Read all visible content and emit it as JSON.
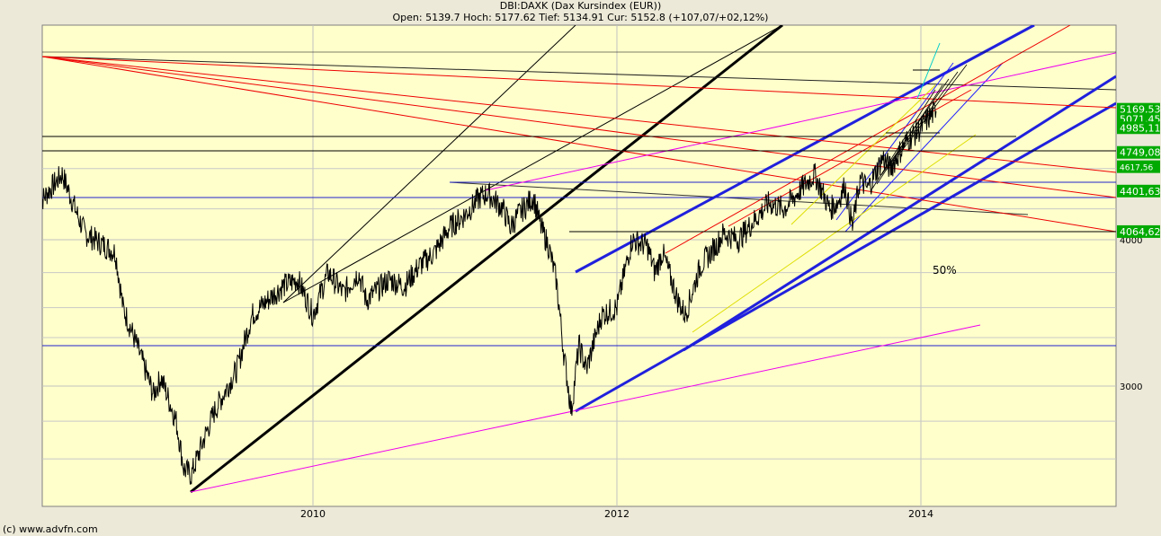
{
  "header": {
    "title": "DBI:DAXK (Dax Kursindex (EUR))",
    "quote": "Open: 5139.7 Hoch: 5177.62 Tief: 5134.91 Cur: 5152.8 (+107,07/+02,12%)"
  },
  "footer": {
    "copyright": "(c) www.advfn.com"
  },
  "chart_data": {
    "type": "line",
    "title": "DBI:DAXK (Dax Kursindex (EUR))",
    "x_ticks": [
      "2010",
      "2012",
      "2014"
    ],
    "y_ticks": [
      3000,
      4000
    ],
    "y_scale": "log",
    "xlim": [
      2008.2,
      2015.3
    ],
    "ylim": [
      2470,
      5750
    ],
    "grid": true,
    "price_labels": [
      {
        "value": "5169,53",
        "color": "#00aa00"
      },
      {
        "value": "5071,45",
        "color": "#00aa00"
      },
      {
        "value": "4985,11",
        "color": "#00aa00"
      },
      {
        "value": "4749,08",
        "color": "#00aa00"
      },
      {
        "value": "4617,56",
        "color": "#00aa00"
      },
      {
        "value": "4401,63",
        "color": "#00aa00"
      },
      {
        "value": "4064,62",
        "color": "#00aa00"
      }
    ],
    "annotations": [
      "50%"
    ],
    "series": [
      {
        "x": [
          2008.2,
          2008.35,
          2008.45,
          2008.5,
          2008.7,
          2008.75,
          2008.95,
          2009.0,
          2009.1,
          2009.15,
          2009.2,
          2009.35,
          2009.5,
          2009.6,
          2009.7,
          2009.8,
          2009.9,
          2010.0,
          2010.1,
          2010.2,
          2010.3,
          2010.35,
          2010.5,
          2010.6,
          2010.7,
          2010.8,
          2010.9,
          2011.0,
          2011.1,
          2011.15,
          2011.25,
          2011.3,
          2011.35,
          2011.45,
          2011.5,
          2011.55,
          2011.6,
          2011.65,
          2011.7,
          2011.75,
          2011.8,
          2011.9,
          2012.0,
          2012.1,
          2012.2,
          2012.25,
          2012.3,
          2012.4,
          2012.45,
          2012.55,
          2012.65,
          2012.7,
          2012.8,
          2012.9,
          2013.0,
          2013.1,
          2013.2,
          2013.3,
          2013.4,
          2013.45,
          2013.5,
          2013.55,
          2013.6,
          2013.65,
          2013.75,
          2013.8,
          2013.9,
          2014.0,
          2014.05,
          2014.1
        ],
        "values": [
          4300,
          4550,
          4200,
          4050,
          3900,
          3500,
          2950,
          3050,
          2800,
          2550,
          2520,
          2850,
          3100,
          3450,
          3550,
          3650,
          3700,
          3450,
          3750,
          3600,
          3750,
          3550,
          3700,
          3650,
          3800,
          3900,
          4100,
          4200,
          4350,
          4380,
          4250,
          4100,
          4200,
          4350,
          4100,
          3950,
          3700,
          3200,
          2850,
          3250,
          3100,
          3450,
          3500,
          4000,
          3950,
          3750,
          3900,
          3550,
          3450,
          3800,
          3950,
          4050,
          4000,
          4150,
          4300,
          4250,
          4400,
          4550,
          4250,
          4300,
          4450,
          4100,
          4500,
          4420,
          4700,
          4600,
          4850,
          4980,
          5080,
          5150
        ]
      }
    ]
  }
}
